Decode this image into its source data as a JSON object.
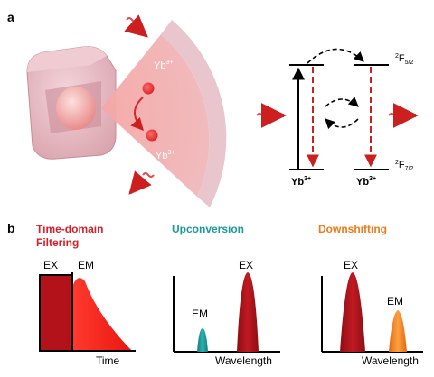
{
  "panel_a": {
    "label": "a",
    "ion_top": "Yb",
    "ion_top_sup": "3+",
    "ion_bottom": "Yb",
    "ion_bottom_sup": "3+",
    "upper_level": {
      "base": "2",
      "letter": "F",
      "sub": "5/2"
    },
    "lower_level": {
      "base": "2",
      "letter": "F",
      "sub": "7/2"
    },
    "ion_left": "Yb",
    "ion_left_sup": "3+",
    "ion_right": "Yb",
    "ion_right_sup": "3+",
    "colors": {
      "arrow_red": "#e34a4a",
      "cube": "#e7b9c2",
      "cone": "#f2a8a8",
      "dashed_red": "#cc1f1f"
    }
  },
  "panel_b": {
    "label": "b",
    "time_domain": {
      "title_line1": "Time-domain",
      "title_line2": "Filtering",
      "title_color": "#d6202a",
      "ex_label": "EX",
      "em_label": "EM",
      "x_axis": "Time"
    },
    "upconversion": {
      "title": "Upconversion",
      "title_color": "#1c9a9a",
      "em_label": "EM",
      "ex_label": "EX",
      "x_axis": "Wavelength"
    },
    "downshifting": {
      "title": "Downshifting",
      "title_color": "#f07a1a",
      "ex_label": "EX",
      "em_label": "EM",
      "x_axis": "Wavelength"
    },
    "colors": {
      "ex": "#b3121b",
      "em_red": "#f2231d",
      "em_teal": "#1f9e9e",
      "em_orange": "#f5871f"
    }
  }
}
